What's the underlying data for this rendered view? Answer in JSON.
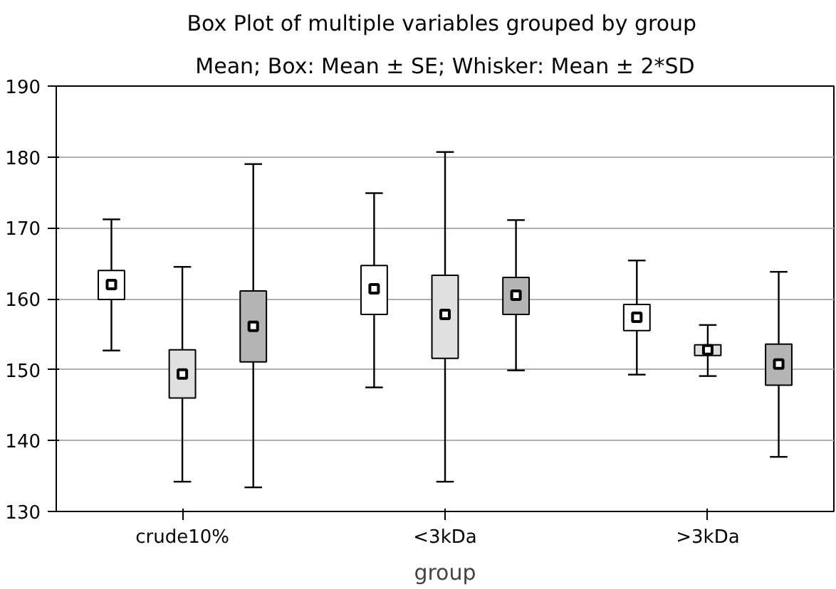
{
  "chart_data": {
    "type": "box",
    "title": "Box Plot of multiple variables grouped by  group",
    "subtitle": "Mean; Box: Mean ± SE; Whisker: Mean ± 2*SD",
    "xlabel": "group",
    "categories": [
      "crude10%",
      "<3kDa",
      ">3kDa"
    ],
    "ylim": [
      130,
      190
    ],
    "yticks": [
      130,
      140,
      150,
      160,
      170,
      180,
      190
    ],
    "grid": "y",
    "series": [
      {
        "color": "#ffffff",
        "boxes": [
          {
            "low": 152.7,
            "q1": 159.9,
            "median": 162.0,
            "q3": 164.0,
            "high": 171.2
          },
          {
            "low": 147.5,
            "q1": 157.8,
            "median": 161.4,
            "q3": 164.7,
            "high": 174.9
          },
          {
            "low": 149.3,
            "q1": 155.5,
            "median": 157.4,
            "q3": 159.2,
            "high": 165.4
          }
        ]
      },
      {
        "color": "#e0e0e0",
        "boxes": [
          {
            "low": 134.2,
            "q1": 146.0,
            "median": 149.4,
            "q3": 152.8,
            "high": 164.5
          },
          {
            "low": 134.2,
            "q1": 151.6,
            "median": 157.8,
            "q3": 163.3,
            "high": 180.7
          },
          {
            "low": 149.1,
            "q1": 152.0,
            "median": 152.8,
            "q3": 153.5,
            "high": 156.3
          }
        ]
      },
      {
        "color": "#b4b4b4",
        "boxes": [
          {
            "low": 133.4,
            "q1": 151.1,
            "median": 156.1,
            "q3": 161.1,
            "high": 179.0
          },
          {
            "low": 149.9,
            "q1": 157.8,
            "median": 160.5,
            "q3": 163.0,
            "high": 171.1
          },
          {
            "low": 137.7,
            "q1": 147.8,
            "median": 150.8,
            "q3": 153.6,
            "high": 163.8
          }
        ]
      }
    ]
  }
}
